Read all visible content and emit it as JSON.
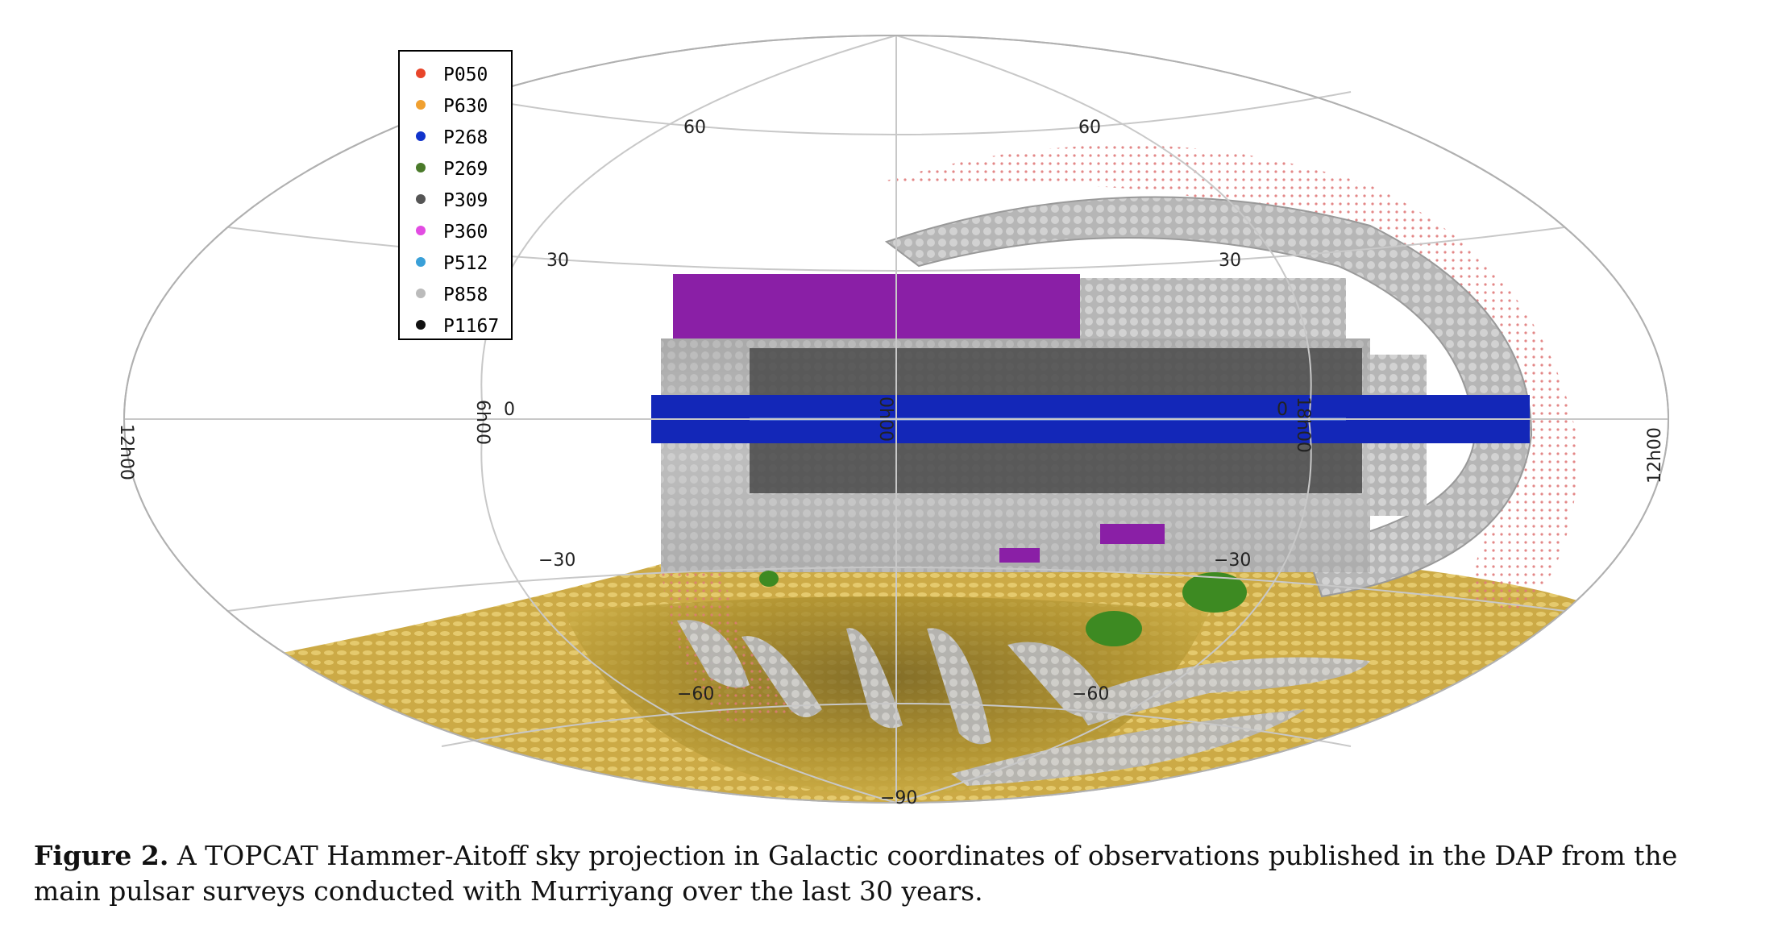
{
  "legend": [
    {
      "label": "P050",
      "color": "#e8452a"
    },
    {
      "label": "P630",
      "color": "#f0a030"
    },
    {
      "label": "P268",
      "color": "#1133cc"
    },
    {
      "label": "P269",
      "color": "#4a7a2a"
    },
    {
      "label": "P309",
      "color": "#555555"
    },
    {
      "label": "P360",
      "color": "#e24ce2"
    },
    {
      "label": "P512",
      "color": "#3aa0d8"
    },
    {
      "label": "P858",
      "color": "#bbbbbb"
    },
    {
      "label": "P1167",
      "color": "#111111"
    }
  ],
  "axis_labels": {
    "lat_60_left": "60",
    "lat_60_right": "60",
    "lat_30_left": "30",
    "lat_30_right": "30",
    "lat_0_left": "0",
    "lat_0_right": "0",
    "lat_m30_left": "−30",
    "lat_m30_right": "−30",
    "lat_m60_left": "−60",
    "lat_m60_right": "−60",
    "lat_m90": "−90",
    "lon_left_edge": "12h00",
    "lon_6h": "6h00",
    "lon_center": "0h00",
    "lon_right_6h": "18h00",
    "lon_right_edge": "12h00"
  },
  "caption": {
    "label": "Figure 2.",
    "text": " A TOPCAT Hammer-Aitoff sky projection in Galactic coordinates of observations published in the DAP from the main pulsar surveys conducted with Murriyang over the last 30 years."
  },
  "colors": {
    "graticule": "#c8c8c8",
    "outline": "#b0b0b0",
    "p630_fill": "#d8b444",
    "p858_fill": "#b4b4b4",
    "p309_fill": "#4c4c4c",
    "p268_fill": "#1327b8",
    "p360_fill": "#8a1fa6",
    "p269_fill": "#3d8a22",
    "p050_fill": "#e8907a"
  }
}
